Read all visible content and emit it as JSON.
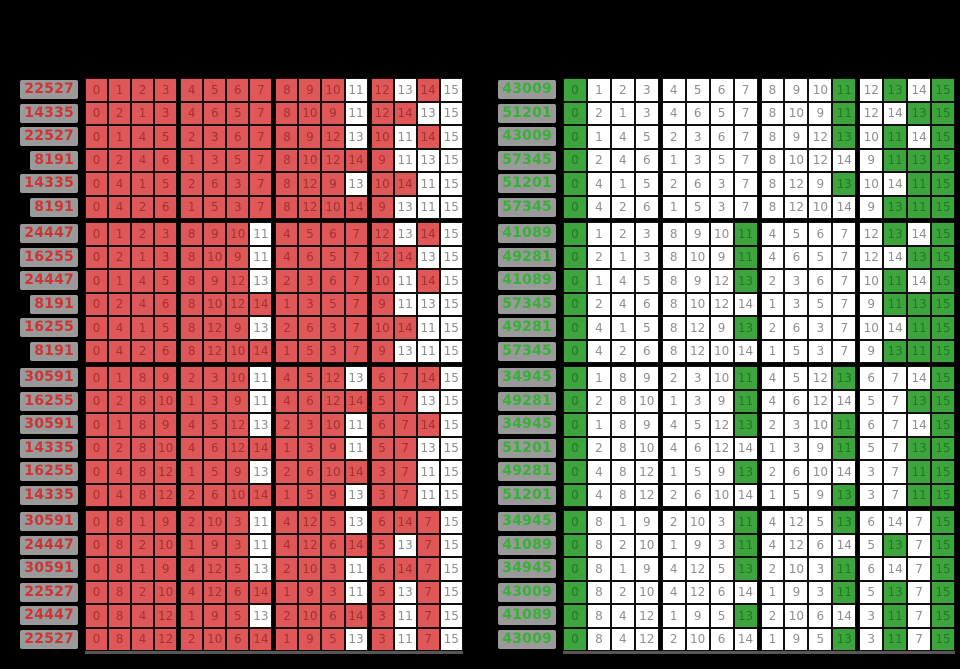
{
  "background": "#000000",
  "chart_data": [
    {
      "type": "table",
      "side": "left",
      "title": "",
      "columns": 16,
      "highlighted_values": [
        0,
        1,
        2,
        3,
        4,
        5,
        6,
        7,
        8,
        9,
        10,
        12,
        14
      ],
      "colors": {
        "fill": "#e05757",
        "fill_text": "#a23131",
        "plain": "#ffffff",
        "plain_text": "#8e8e8e",
        "label_text": "#cf3434",
        "label_chip": "#9a9a9a"
      },
      "rows": [
        {
          "label": "22527",
          "cells": [
            0,
            1,
            2,
            3,
            4,
            5,
            6,
            7,
            8,
            9,
            10,
            11,
            12,
            13,
            14,
            15
          ]
        },
        {
          "label": "14335",
          "cells": [
            0,
            2,
            1,
            3,
            4,
            6,
            5,
            7,
            8,
            10,
            9,
            11,
            12,
            14,
            13,
            15
          ]
        },
        {
          "label": "22527",
          "cells": [
            0,
            1,
            4,
            5,
            2,
            3,
            6,
            7,
            8,
            9,
            12,
            13,
            10,
            11,
            14,
            15
          ]
        },
        {
          "label": "8191",
          "cells": [
            0,
            2,
            4,
            6,
            1,
            3,
            5,
            7,
            8,
            10,
            12,
            14,
            9,
            11,
            13,
            15
          ]
        },
        {
          "label": "14335",
          "cells": [
            0,
            4,
            1,
            5,
            2,
            6,
            3,
            7,
            8,
            12,
            9,
            13,
            10,
            14,
            11,
            15
          ]
        },
        {
          "label": "8191",
          "cells": [
            0,
            4,
            2,
            6,
            1,
            5,
            3,
            7,
            8,
            12,
            10,
            14,
            9,
            13,
            11,
            15
          ]
        },
        {
          "label": "24447",
          "cells": [
            0,
            1,
            2,
            3,
            8,
            9,
            10,
            11,
            4,
            5,
            6,
            7,
            12,
            13,
            14,
            15
          ]
        },
        {
          "label": "16255",
          "cells": [
            0,
            2,
            1,
            3,
            8,
            10,
            9,
            11,
            4,
            6,
            5,
            7,
            12,
            14,
            13,
            15
          ]
        },
        {
          "label": "24447",
          "cells": [
            0,
            1,
            4,
            5,
            8,
            9,
            12,
            13,
            2,
            3,
            6,
            7,
            10,
            11,
            14,
            15
          ]
        },
        {
          "label": "8191",
          "cells": [
            0,
            2,
            4,
            6,
            8,
            10,
            12,
            14,
            1,
            3,
            5,
            7,
            9,
            11,
            13,
            15
          ]
        },
        {
          "label": "16255",
          "cells": [
            0,
            4,
            1,
            5,
            8,
            12,
            9,
            13,
            2,
            6,
            3,
            7,
            10,
            14,
            11,
            15
          ]
        },
        {
          "label": "8191",
          "cells": [
            0,
            4,
            2,
            6,
            8,
            12,
            10,
            14,
            1,
            5,
            3,
            7,
            9,
            13,
            11,
            15
          ]
        },
        {
          "label": "30591",
          "cells": [
            0,
            1,
            8,
            9,
            2,
            3,
            10,
            11,
            4,
            5,
            12,
            13,
            6,
            7,
            14,
            15
          ]
        },
        {
          "label": "16255",
          "cells": [
            0,
            2,
            8,
            10,
            1,
            3,
            9,
            11,
            4,
            6,
            12,
            14,
            5,
            7,
            13,
            15
          ]
        },
        {
          "label": "30591",
          "cells": [
            0,
            1,
            8,
            9,
            4,
            5,
            12,
            13,
            2,
            3,
            10,
            11,
            6,
            7,
            14,
            15
          ]
        },
        {
          "label": "14335",
          "cells": [
            0,
            2,
            8,
            10,
            4,
            6,
            12,
            14,
            1,
            3,
            9,
            11,
            5,
            7,
            13,
            15
          ]
        },
        {
          "label": "16255",
          "cells": [
            0,
            4,
            8,
            12,
            1,
            5,
            9,
            13,
            2,
            6,
            10,
            14,
            3,
            7,
            11,
            15
          ]
        },
        {
          "label": "14335",
          "cells": [
            0,
            4,
            8,
            12,
            2,
            6,
            10,
            14,
            1,
            5,
            9,
            13,
            3,
            7,
            11,
            15
          ]
        },
        {
          "label": "30591",
          "cells": [
            0,
            8,
            1,
            9,
            2,
            10,
            3,
            11,
            4,
            12,
            5,
            13,
            6,
            14,
            7,
            15
          ]
        },
        {
          "label": "24447",
          "cells": [
            0,
            8,
            2,
            10,
            1,
            9,
            3,
            11,
            4,
            12,
            6,
            14,
            5,
            13,
            7,
            15
          ]
        },
        {
          "label": "30591",
          "cells": [
            0,
            8,
            1,
            9,
            4,
            12,
            5,
            13,
            2,
            10,
            3,
            11,
            6,
            14,
            7,
            15
          ]
        },
        {
          "label": "22527",
          "cells": [
            0,
            8,
            2,
            10,
            4,
            12,
            6,
            14,
            1,
            9,
            3,
            11,
            5,
            13,
            7,
            15
          ]
        },
        {
          "label": "24447",
          "cells": [
            0,
            8,
            4,
            12,
            1,
            9,
            5,
            13,
            2,
            10,
            6,
            14,
            3,
            11,
            7,
            15
          ]
        },
        {
          "label": "22527",
          "cells": [
            0,
            8,
            4,
            12,
            2,
            10,
            6,
            14,
            1,
            9,
            5,
            13,
            3,
            11,
            7,
            15
          ]
        }
      ]
    },
    {
      "type": "table",
      "side": "right",
      "title": "",
      "columns": 16,
      "highlighted_values": [
        0,
        11,
        13,
        15
      ],
      "colors": {
        "fill": "#3ea53e",
        "fill_text": "#1d7a1d",
        "plain": "#ffffff",
        "plain_text": "#8e8e8e",
        "label_text": "#35b235",
        "label_chip": "#9a9a9a"
      },
      "rows": [
        {
          "label": "43009",
          "cells": [
            0,
            1,
            2,
            3,
            4,
            5,
            6,
            7,
            8,
            9,
            10,
            11,
            12,
            13,
            14,
            15
          ]
        },
        {
          "label": "51201",
          "cells": [
            0,
            2,
            1,
            3,
            4,
            6,
            5,
            7,
            8,
            10,
            9,
            11,
            12,
            14,
            13,
            15
          ]
        },
        {
          "label": "43009",
          "cells": [
            0,
            1,
            4,
            5,
            2,
            3,
            6,
            7,
            8,
            9,
            12,
            13,
            10,
            11,
            14,
            15
          ]
        },
        {
          "label": "57345",
          "cells": [
            0,
            2,
            4,
            6,
            1,
            3,
            5,
            7,
            8,
            10,
            12,
            14,
            9,
            11,
            13,
            15
          ]
        },
        {
          "label": "51201",
          "cells": [
            0,
            4,
            1,
            5,
            2,
            6,
            3,
            7,
            8,
            12,
            9,
            13,
            10,
            14,
            11,
            15
          ]
        },
        {
          "label": "57345",
          "cells": [
            0,
            4,
            2,
            6,
            1,
            5,
            3,
            7,
            8,
            12,
            10,
            14,
            9,
            13,
            11,
            15
          ]
        },
        {
          "label": "41089",
          "cells": [
            0,
            1,
            2,
            3,
            8,
            9,
            10,
            11,
            4,
            5,
            6,
            7,
            12,
            13,
            14,
            15
          ]
        },
        {
          "label": "49281",
          "cells": [
            0,
            2,
            1,
            3,
            8,
            10,
            9,
            11,
            4,
            6,
            5,
            7,
            12,
            14,
            13,
            15
          ]
        },
        {
          "label": "41089",
          "cells": [
            0,
            1,
            4,
            5,
            8,
            9,
            12,
            13,
            2,
            3,
            6,
            7,
            10,
            11,
            14,
            15
          ]
        },
        {
          "label": "57345",
          "cells": [
            0,
            2,
            4,
            6,
            8,
            10,
            12,
            14,
            1,
            3,
            5,
            7,
            9,
            11,
            13,
            15
          ]
        },
        {
          "label": "49281",
          "cells": [
            0,
            4,
            1,
            5,
            8,
            12,
            9,
            13,
            2,
            6,
            3,
            7,
            10,
            14,
            11,
            15
          ]
        },
        {
          "label": "57345",
          "cells": [
            0,
            4,
            2,
            6,
            8,
            12,
            10,
            14,
            1,
            5,
            3,
            7,
            9,
            13,
            11,
            15
          ]
        },
        {
          "label": "34945",
          "cells": [
            0,
            1,
            8,
            9,
            2,
            3,
            10,
            11,
            4,
            5,
            12,
            13,
            6,
            7,
            14,
            15
          ]
        },
        {
          "label": "49281",
          "cells": [
            0,
            2,
            8,
            10,
            1,
            3,
            9,
            11,
            4,
            6,
            12,
            14,
            5,
            7,
            13,
            15
          ]
        },
        {
          "label": "34945",
          "cells": [
            0,
            1,
            8,
            9,
            4,
            5,
            12,
            13,
            2,
            3,
            10,
            11,
            6,
            7,
            14,
            15
          ]
        },
        {
          "label": "51201",
          "cells": [
            0,
            2,
            8,
            10,
            4,
            6,
            12,
            14,
            1,
            3,
            9,
            11,
            5,
            7,
            13,
            15
          ]
        },
        {
          "label": "49281",
          "cells": [
            0,
            4,
            8,
            12,
            1,
            5,
            9,
            13,
            2,
            6,
            10,
            14,
            3,
            7,
            11,
            15
          ]
        },
        {
          "label": "51201",
          "cells": [
            0,
            4,
            8,
            12,
            2,
            6,
            10,
            14,
            1,
            5,
            9,
            13,
            3,
            7,
            11,
            15
          ]
        },
        {
          "label": "34945",
          "cells": [
            0,
            8,
            1,
            9,
            2,
            10,
            3,
            11,
            4,
            12,
            5,
            13,
            6,
            14,
            7,
            15
          ]
        },
        {
          "label": "41089",
          "cells": [
            0,
            8,
            2,
            10,
            1,
            9,
            3,
            11,
            4,
            12,
            6,
            14,
            5,
            13,
            7,
            15
          ]
        },
        {
          "label": "34945",
          "cells": [
            0,
            8,
            1,
            9,
            4,
            12,
            5,
            13,
            2,
            10,
            3,
            11,
            6,
            14,
            7,
            15
          ]
        },
        {
          "label": "43009",
          "cells": [
            0,
            8,
            2,
            10,
            4,
            12,
            6,
            14,
            1,
            9,
            3,
            11,
            5,
            13,
            7,
            15
          ]
        },
        {
          "label": "41089",
          "cells": [
            0,
            8,
            4,
            12,
            1,
            9,
            5,
            13,
            2,
            10,
            6,
            14,
            3,
            11,
            7,
            15
          ]
        },
        {
          "label": "43009",
          "cells": [
            0,
            8,
            4,
            12,
            2,
            10,
            6,
            14,
            1,
            9,
            5,
            13,
            3,
            11,
            7,
            15
          ]
        }
      ]
    }
  ]
}
